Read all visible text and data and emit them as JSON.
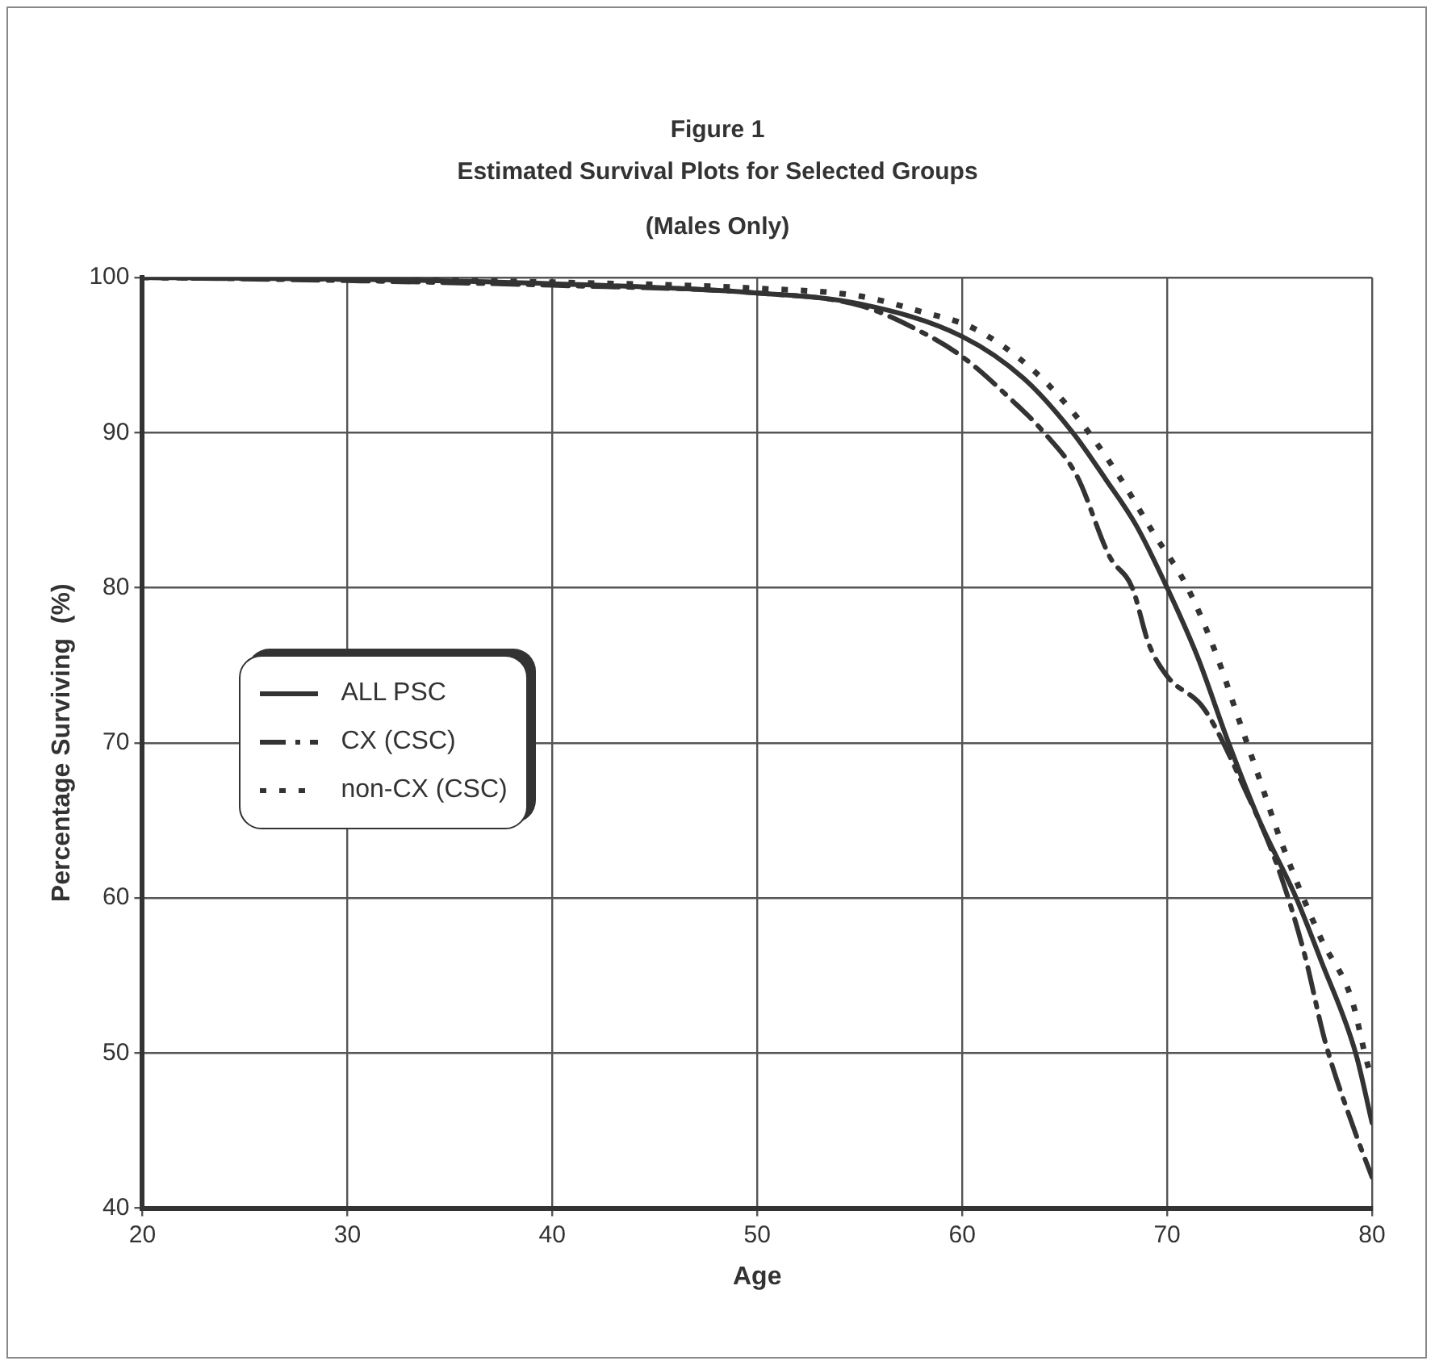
{
  "chart_data": {
    "type": "line",
    "title": "Figure 1",
    "subtitle": "Estimated Survival Plots for Selected Groups",
    "annotations": [
      "(Males Only)"
    ],
    "xlabel": "Age",
    "ylabel": "Percentage Surviving  (%)",
    "xlim": [
      20,
      80
    ],
    "xticks": [
      20,
      30,
      40,
      50,
      60,
      70,
      80
    ],
    "ylim": [
      40,
      100
    ],
    "yticks": [
      40,
      50,
      60,
      70,
      80,
      90,
      100
    ],
    "grid": true,
    "legend": "center left",
    "marker": "none",
    "series": [
      {
        "name": "ALL PSC",
        "color": "#333333",
        "line_style": "solid",
        "x": [
          20,
          30,
          40,
          50,
          55,
          60,
          63,
          65.4,
          67,
          68.5,
          70,
          71.5,
          73,
          74.5,
          76.3,
          77.5,
          79.2,
          80
        ],
        "values": [
          100,
          99.9,
          99.6,
          99,
          98.3,
          96.2,
          93.5,
          90,
          87,
          84,
          80,
          75.5,
          70,
          65,
          60,
          56,
          50,
          45.5
        ]
      },
      {
        "name": "CX (CSC)",
        "color": "#333333",
        "line_style": "dashed",
        "x": [
          20,
          30,
          40,
          50,
          55,
          58,
          60,
          62.5,
          64,
          65.6,
          67.2,
          68.3,
          69.1,
          70,
          71.8,
          73.8,
          75.4,
          76.7,
          77.7,
          79.2,
          80
        ],
        "values": [
          100,
          99.8,
          99.5,
          99,
          98.2,
          96.5,
          94.9,
          92,
          90,
          87.2,
          82,
          80,
          76.4,
          74.3,
          72.2,
          67,
          62,
          56.4,
          50.8,
          44.8,
          42
        ]
      },
      {
        "name": "non-CX (CSC)",
        "color": "#333333",
        "line_style": "dotted",
        "x": [
          20,
          30,
          40,
          50,
          55,
          58,
          60.6,
          63.4,
          65.6,
          67.6,
          69.3,
          71,
          72.4,
          73.5,
          74.5,
          75.6,
          77.5,
          79,
          79.8,
          80
        ],
        "values": [
          100,
          99.9,
          99.7,
          99.3,
          98.8,
          97.8,
          96.7,
          94.1,
          91,
          87.3,
          83.6,
          80,
          75.7,
          71.5,
          67.7,
          63.5,
          57.4,
          53.5,
          49.2,
          48.5
        ]
      }
    ]
  }
}
